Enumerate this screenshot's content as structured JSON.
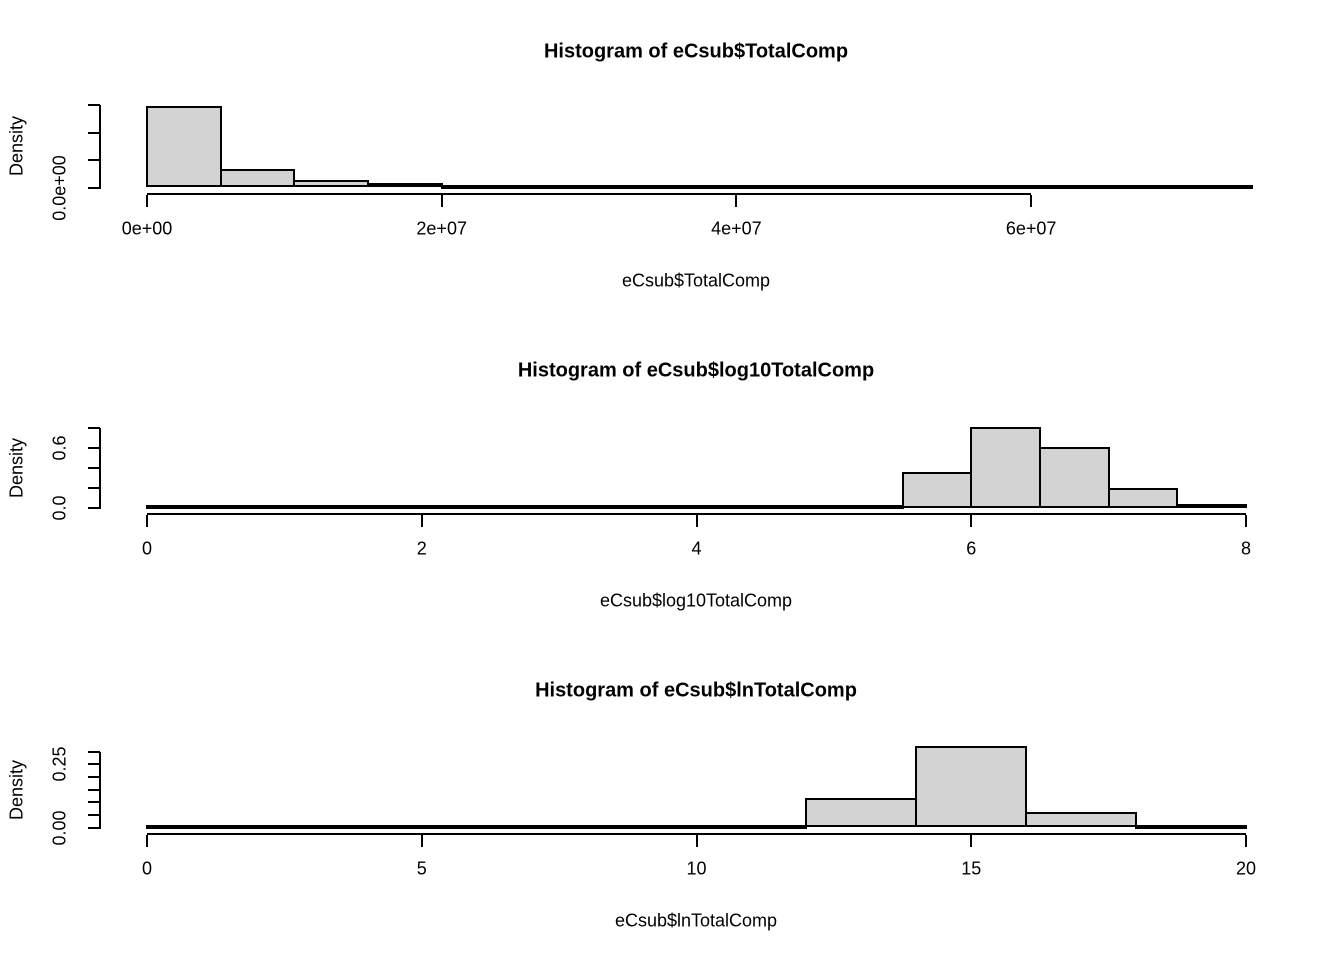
{
  "figure": {
    "background_color": "#ffffff",
    "bar_fill_color": "#d3d3d3",
    "bar_border_color": "#000000",
    "text_color": "#000000"
  },
  "chart_data": [
    {
      "type": "bar",
      "title": "Histogram of eCsub$TotalComp",
      "xlabel": "eCsub$TotalComp",
      "ylabel": "Density",
      "bin_start": 0,
      "bin_width": 5000000,
      "densities": [
        1.48e-07,
        3.3e-08,
        1.4e-08,
        9e-09,
        5e-09,
        4e-09,
        3e-09,
        3e-09,
        2e-09,
        2e-09,
        2e-09,
        2e-09,
        2e-09,
        2e-09,
        2e-09
      ],
      "xlim": [
        0,
        75000000
      ],
      "ylim": [
        0,
        1.5e-07
      ],
      "x_axis_line_span": [
        0,
        60000000
      ],
      "x_ticks": {
        "values": [
          0,
          20000000,
          40000000,
          60000000
        ],
        "labels": [
          "0e+00",
          "2e+07",
          "4e+07",
          "6e+07"
        ]
      },
      "y_ticks": {
        "values": [
          0,
          5e-08,
          1e-07,
          1.5e-07
        ],
        "labels": [
          "0.0e+00",
          "",
          "",
          ""
        ]
      },
      "grid": false,
      "legend": null
    },
    {
      "type": "bar",
      "title": "Histogram of eCsub$log10TotalComp",
      "xlabel": "eCsub$log10TotalComp",
      "ylabel": "Density",
      "bin_start": 0,
      "bin_width": 0.5,
      "densities": [
        0.006,
        0.006,
        0.006,
        0.006,
        0.006,
        0.006,
        0.006,
        0.006,
        0.006,
        0.006,
        0.02,
        0.36,
        0.81,
        0.61,
        0.2,
        0.04
      ],
      "xlim": [
        0,
        8
      ],
      "ylim": [
        0,
        0.8
      ],
      "x_axis_line_span": [
        0,
        8
      ],
      "x_ticks": {
        "values": [
          0,
          2,
          4,
          6,
          8
        ],
        "labels": [
          "0",
          "2",
          "4",
          "6",
          "8"
        ]
      },
      "y_ticks": {
        "values": [
          0,
          0.2,
          0.4,
          0.6,
          0.8
        ],
        "labels": [
          "0.0",
          "",
          "",
          "0.6",
          ""
        ]
      },
      "grid": false,
      "legend": null
    },
    {
      "type": "bar",
      "title": "Histogram of eCsub$lnTotalComp",
      "xlabel": "eCsub$lnTotalComp",
      "ylabel": "Density",
      "bin_start": 0,
      "bin_width": 2,
      "densities": [
        0.002,
        0.002,
        0.002,
        0.002,
        0.002,
        0.01,
        0.115,
        0.32,
        0.063,
        0.004
      ],
      "xlim": [
        0,
        20
      ],
      "ylim": [
        0,
        0.3
      ],
      "x_axis_line_span": [
        0,
        20
      ],
      "x_ticks": {
        "values": [
          0,
          5,
          10,
          15,
          20
        ],
        "labels": [
          "0",
          "5",
          "10",
          "15",
          "20"
        ]
      },
      "y_ticks": {
        "values": [
          0,
          0.05,
          0.1,
          0.15,
          0.2,
          0.25,
          0.3
        ],
        "labels": [
          "0.00",
          "",
          "",
          "",
          "",
          "0.25",
          ""
        ]
      },
      "grid": false,
      "legend": null
    }
  ]
}
